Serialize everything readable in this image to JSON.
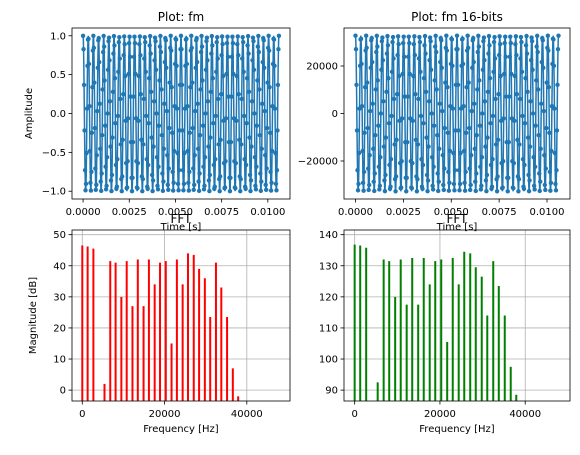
{
  "chart_data": [
    {
      "type": "line",
      "panel": "top-left",
      "title": "Plot: fm",
      "xlabel": "Time [s]",
      "ylabel": "Amplitude",
      "xlim": [
        -0.0006,
        0.0112
      ],
      "ylim": [
        -1.1,
        1.1
      ],
      "xticks": [
        0.0,
        0.0025,
        0.005,
        0.0075,
        0.01
      ],
      "xtick_labels": [
        "0.0000",
        "0.0025",
        "0.0050",
        "0.0075",
        "0.0100"
      ],
      "yticks": [
        -1.0,
        -0.5,
        0.0,
        0.5,
        1.0
      ],
      "ytick_labels": [
        "−1.0",
        "−0.5",
        "0.0",
        "0.5",
        "1.0"
      ],
      "grid": false,
      "color": "#1f77b4",
      "marker": "dot",
      "signal": {
        "t_start": 0.0,
        "t_end": 0.0106,
        "amplitude": 1.0,
        "cycles": 38
      }
    },
    {
      "type": "line",
      "panel": "top-right",
      "title": "Plot: fm 16-bits",
      "xlabel": "Time [s]",
      "ylabel": "",
      "xlim": [
        -0.0006,
        0.0112
      ],
      "ylim": [
        -36000,
        36000
      ],
      "xticks": [
        0.0,
        0.0025,
        0.005,
        0.0075,
        0.01
      ],
      "xtick_labels": [
        "0.0000",
        "0.0025",
        "0.0050",
        "0.0075",
        "0.0100"
      ],
      "yticks": [
        -20000,
        0,
        20000
      ],
      "ytick_labels": [
        "−20000",
        "0",
        "20000"
      ],
      "grid": false,
      "color": "#1f77b4",
      "marker": "dot",
      "signal": {
        "t_start": 0.0,
        "t_end": 0.0106,
        "amplitude": 32767,
        "cycles": 38
      }
    },
    {
      "type": "bar",
      "panel": "bottom-left",
      "title": "FFT",
      "xlabel": "Frequency [Hz]",
      "ylabel": "Magnitude [dB]",
      "xlim": [
        -2500,
        50500
      ],
      "ylim": [
        -3.5,
        51.5
      ],
      "xticks": [
        0,
        20000,
        40000
      ],
      "xtick_labels": [
        "0",
        "20000",
        "40000"
      ],
      "yticks": [
        0,
        10,
        20,
        30,
        40,
        50
      ],
      "ytick_labels": [
        "0",
        "10",
        "20",
        "30",
        "40",
        "50"
      ],
      "grid": true,
      "color": "#ff0000",
      "baseline": -3.5,
      "x": [
        0,
        1300,
        2700,
        5400,
        6800,
        8100,
        9500,
        10800,
        12200,
        13500,
        14900,
        16200,
        17600,
        18900,
        20300,
        21700,
        23000,
        24400,
        25700,
        27100,
        28400,
        29800,
        31100,
        32500,
        33800,
        35200,
        36600,
        37900
      ],
      "values": [
        46.5,
        46.2,
        45.5,
        2.0,
        41.5,
        41.0,
        30.0,
        41.5,
        27.0,
        42.0,
        27.0,
        42.0,
        34.0,
        41.0,
        41.5,
        15.0,
        42.0,
        34.0,
        44.0,
        43.5,
        39.0,
        36.0,
        23.5,
        41.0,
        33.0,
        23.5,
        7.0,
        -2.0
      ]
    },
    {
      "type": "bar",
      "panel": "bottom-right",
      "title": "FFT",
      "xlabel": "Frequency [Hz]",
      "ylabel": "",
      "xlim": [
        -2500,
        50500
      ],
      "ylim": [
        86.5,
        141.5
      ],
      "xticks": [
        0,
        20000,
        40000
      ],
      "xtick_labels": [
        "0",
        "20000",
        "40000"
      ],
      "yticks": [
        90,
        100,
        110,
        120,
        130,
        140
      ],
      "ytick_labels": [
        "90",
        "100",
        "110",
        "120",
        "130",
        "140"
      ],
      "grid": true,
      "color": "#008000",
      "baseline": 86.5,
      "x": [
        0,
        1300,
        2700,
        5400,
        6800,
        8100,
        9500,
        10800,
        12200,
        13500,
        14900,
        16200,
        17600,
        18900,
        20300,
        21700,
        23000,
        24400,
        25700,
        27100,
        28400,
        29800,
        31100,
        32500,
        33800,
        35200,
        36600,
        37900
      ],
      "values": [
        136.8,
        136.5,
        135.8,
        92.5,
        132.0,
        131.5,
        120.0,
        132.0,
        117.5,
        132.5,
        117.5,
        132.5,
        124.0,
        131.5,
        132.0,
        105.5,
        132.5,
        124.0,
        134.5,
        134.0,
        129.5,
        126.5,
        114.0,
        131.5,
        123.5,
        114.0,
        97.5,
        88.5
      ]
    }
  ]
}
